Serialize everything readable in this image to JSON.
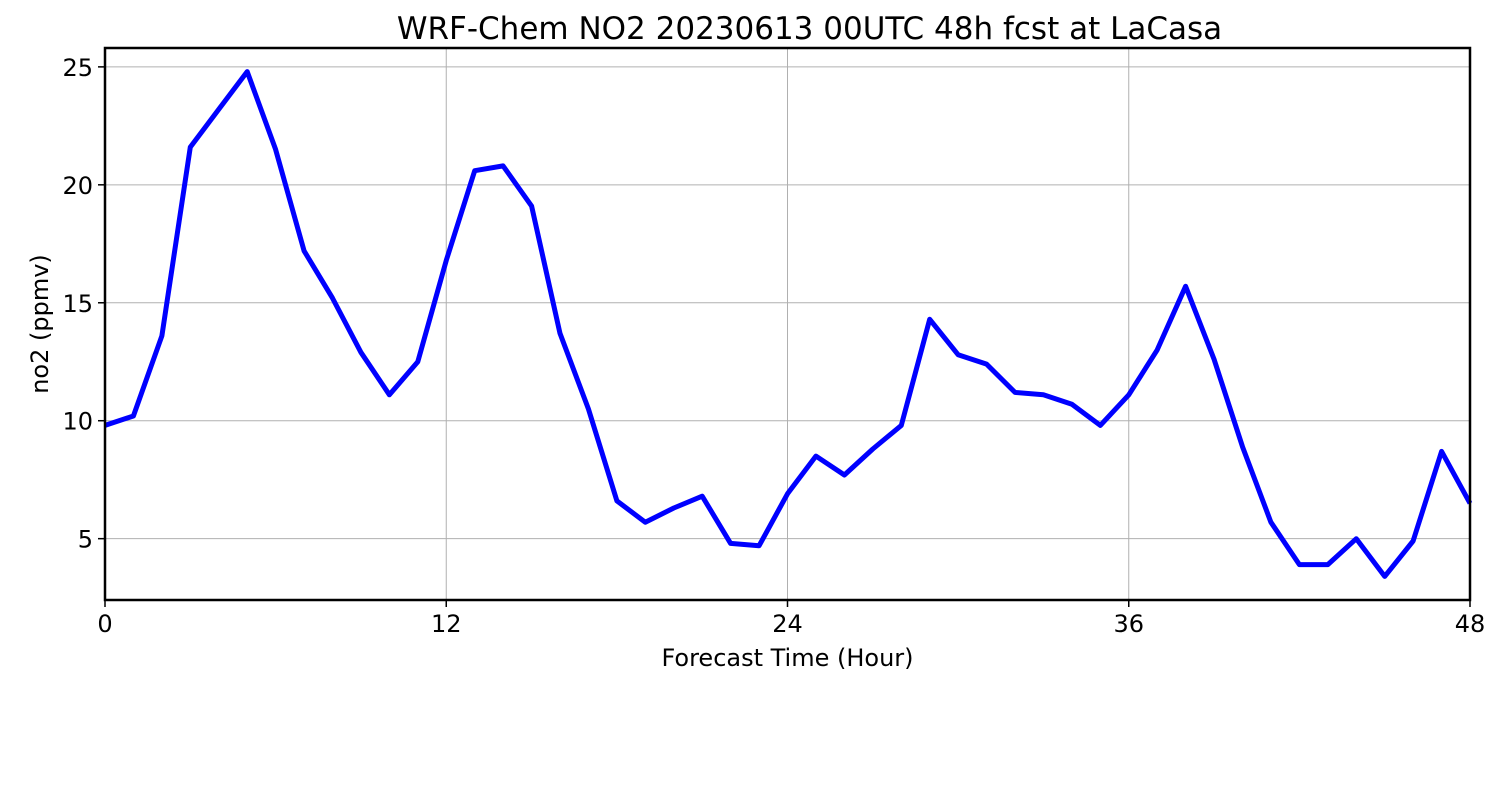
{
  "chart_data": {
    "type": "line",
    "title": "WRF-Chem NO2  20230613 00UTC 48h fcst at LaCasa",
    "xlabel": "Forecast Time (Hour)",
    "ylabel": "no2  (ppmv)",
    "xlim": [
      0,
      48
    ],
    "ylim": [
      2.4,
      25.8
    ],
    "xticks": [
      0,
      12,
      24,
      36,
      48
    ],
    "yticks": [
      5,
      10,
      15,
      20,
      25
    ],
    "grid": true,
    "colors": {
      "line": "#0000ff",
      "grid": "#b0b0b0",
      "axes": "#000000"
    },
    "series": [
      {
        "x": [
          0,
          1,
          2,
          3,
          4,
          5,
          6,
          7,
          8,
          9,
          10,
          11,
          12,
          13,
          14,
          15,
          16,
          17,
          18,
          19,
          20,
          21,
          22,
          23,
          24,
          25,
          26,
          27,
          28,
          29,
          30,
          31,
          32,
          33,
          34,
          35,
          36,
          37,
          38,
          39,
          40,
          41,
          42,
          43,
          44,
          45,
          46,
          47,
          48
        ],
        "values": [
          9.8,
          10.2,
          13.6,
          21.6,
          23.2,
          24.8,
          21.5,
          17.2,
          15.2,
          12.9,
          11.1,
          12.5,
          16.8,
          20.6,
          20.8,
          19.1,
          13.7,
          10.5,
          6.6,
          5.7,
          6.3,
          6.8,
          4.8,
          4.7,
          6.9,
          8.5,
          7.7,
          8.8,
          9.8,
          14.3,
          12.8,
          12.4,
          11.2,
          11.1,
          10.7,
          9.8,
          11.1,
          13.0,
          15.7,
          12.6,
          8.9,
          5.7,
          3.9,
          3.9,
          5.0,
          3.4,
          4.9,
          8.7,
          6.5
        ]
      }
    ]
  }
}
